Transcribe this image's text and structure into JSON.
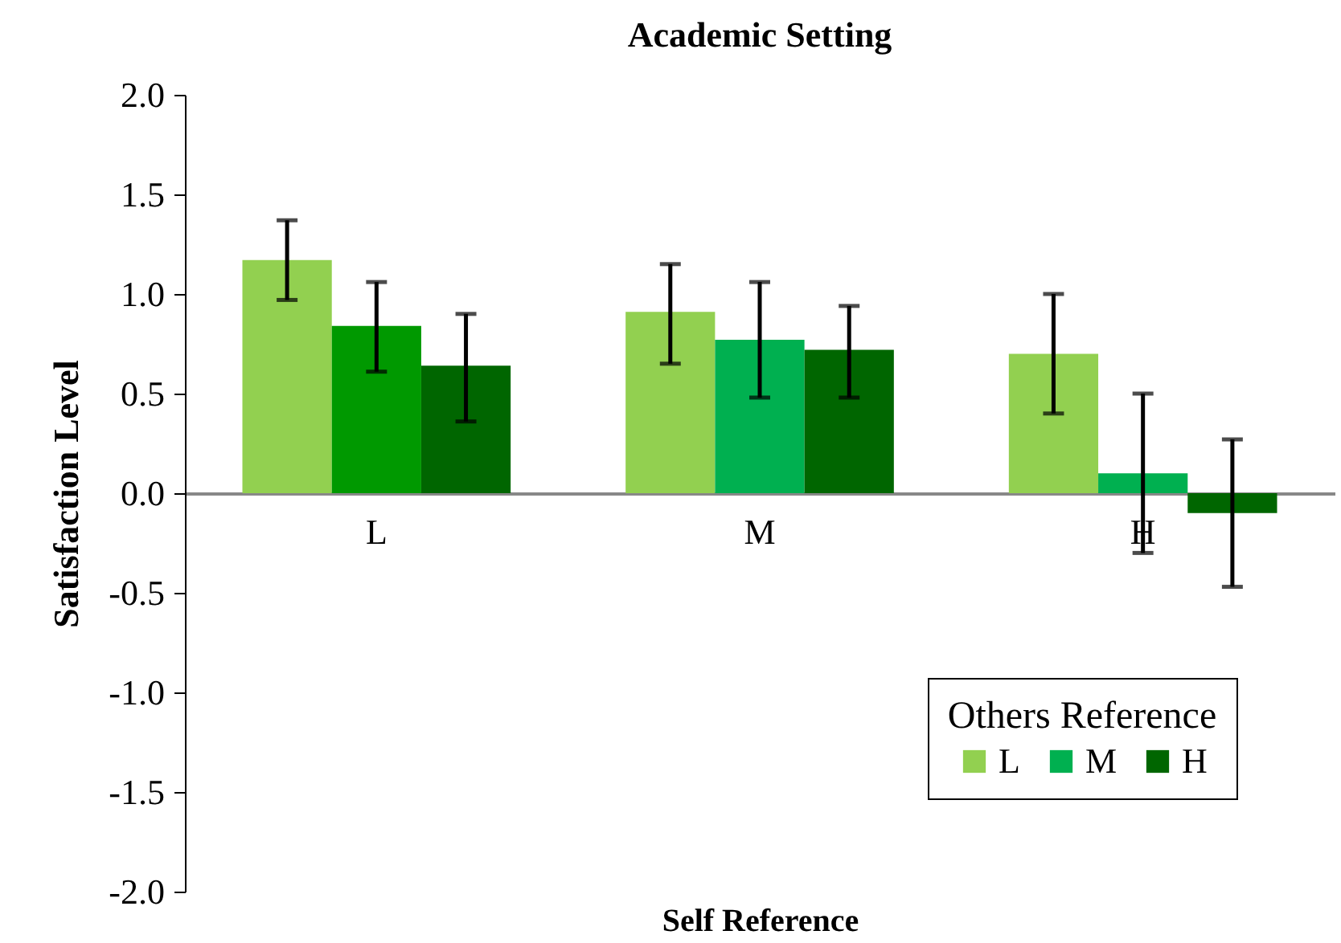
{
  "chart_data": {
    "type": "bar",
    "title": "Academic Setting",
    "xlabel": "Self Reference",
    "ylabel": "Satisfaction Level",
    "legend_title": "Others Reference",
    "categories": [
      "L",
      "M",
      "H"
    ],
    "series": [
      {
        "name": "L",
        "color": "#92d050",
        "values": [
          1.17,
          0.91,
          0.7
        ],
        "errors": [
          [
            0.97,
            1.37
          ],
          [
            0.65,
            1.15
          ],
          [
            0.4,
            1.0
          ]
        ]
      },
      {
        "name": "M",
        "color": "#00b050",
        "colors": [
          "#009900",
          "#00b050",
          "#00b050"
        ],
        "values": [
          0.84,
          0.77,
          0.1
        ],
        "errors": [
          [
            0.61,
            1.06
          ],
          [
            0.48,
            1.06
          ],
          [
            -0.3,
            0.5
          ]
        ]
      },
      {
        "name": "H",
        "color": "#006600",
        "values": [
          0.64,
          0.72,
          -0.1
        ],
        "errors": [
          [
            0.36,
            0.9
          ],
          [
            0.48,
            0.94
          ],
          [
            -0.47,
            0.27
          ]
        ]
      }
    ],
    "ylim": [
      -2.0,
      2.0
    ],
    "yticks": [
      {
        "value": -2,
        "label": "-2.0"
      },
      {
        "value": -1.5,
        "label": "-1.5"
      },
      {
        "value": -1,
        "label": "-1.0"
      },
      {
        "value": -0.5,
        "label": "-0.5"
      },
      {
        "value": 0,
        "label": "0.0"
      },
      {
        "value": 0.5,
        "label": "0.5"
      },
      {
        "value": 1,
        "label": "1.0"
      },
      {
        "value": 1.5,
        "label": "1.5"
      },
      {
        "value": 2,
        "label": "2.0"
      }
    ],
    "grid": false,
    "legend": "bottom right"
  }
}
